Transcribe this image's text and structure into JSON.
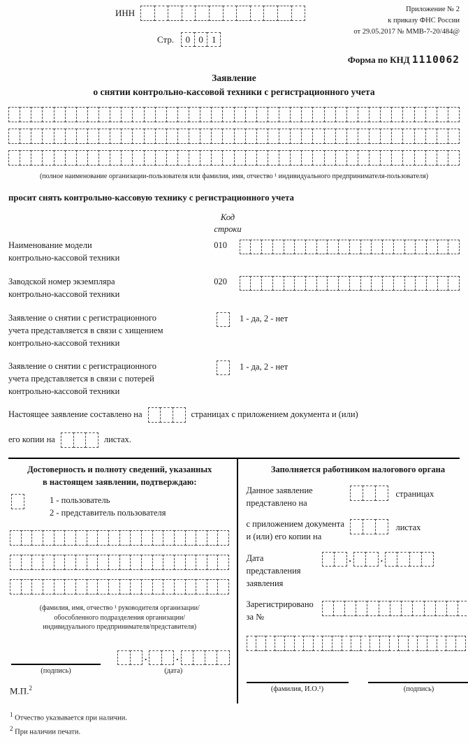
{
  "colors": {
    "line": "#000000",
    "cell_border": "#4a4a4a",
    "text": "#1a1a1a",
    "background": "#fefefe"
  },
  "header": {
    "inn_label": "ИНН",
    "inn_cells": 12,
    "page_label": "Стр.",
    "page_cells": 3,
    "page_value": [
      "0",
      "0",
      "1"
    ],
    "appendix_line1": "Приложение № 2",
    "appendix_line2": "к приказу ФНС России",
    "appendix_line3": "от 29.05.2017 № ММВ-7-20/484@",
    "form_code_label": "Форма по КНД",
    "form_code_value": "1110062"
  },
  "title": {
    "line1": "Заявление",
    "line2": "о снятии контрольно-кассовой техники с регистрационного учета"
  },
  "applicant": {
    "rows": 3,
    "cols": 40,
    "caption": "(полное наименование организации-пользователя или фамилия, имя, отчество ¹ индивидуального предпринимателя-пользователя)"
  },
  "request_line": "просит снять контрольно-кассовую технику с регистрационного учета",
  "code_header": {
    "line1": "Код",
    "line2": "строки"
  },
  "fields": [
    {
      "label1": "Наименование модели",
      "label2": "контрольно-кассовой техники",
      "code": "010",
      "cells": 20
    },
    {
      "label1": "Заводской номер экземпляра",
      "label2": "контрольно-кассовой техники",
      "code": "020",
      "cells": 20
    }
  ],
  "checkbox_cells": 1,
  "checkboxes": [
    {
      "line1": "Заявление о снятии с регистрационного",
      "line2": "учета представляется в связи с хищением",
      "line3": "контрольно-кассовой техники",
      "options": "1 - да,  2 - нет"
    },
    {
      "line1": "Заявление о снятии с регистрационного",
      "line2": "учета представляется в связи с потерей",
      "line3": "контрольно-кассовой техники",
      "options": "1 - да,  2 - нет"
    }
  ],
  "pages_statement": {
    "text1": "Настоящее заявление составлено на",
    "cells1": 3,
    "text2": "страницах с приложением документа и (или)",
    "text3": "его копии на",
    "cells2": 3,
    "text4": "листах."
  },
  "left_panel": {
    "header_line1": "Достоверность и полноту сведений, указанных",
    "header_line2": "в настоящем заявлении, подтверждаю:",
    "option1": "1 - пользователь",
    "option2": "2 - представитель пользователя",
    "rows": 3,
    "cols": 20,
    "caption_line1": "(фамилия, имя, отчество ¹ руководителя организации/",
    "caption_line2": "обособленного подразделения организации/",
    "caption_line3": "индивидуального предпринимателя/представителя)",
    "signature_label": "(подпись)",
    "date_label": "(дата)",
    "date_groups": [
      2,
      2,
      4
    ],
    "date_separator": ".",
    "stamp": "М.П.",
    "stamp_sup": "2"
  },
  "right_panel": {
    "header": "Заполняется работником налогового органа",
    "row1_label1": "Данное заявление",
    "row1_label2": "представлено на",
    "row1_cells": 3,
    "row1_suffix": "страницах",
    "row2_label1": "с приложением документа",
    "row2_label2": "и (или) его копии на",
    "row2_cells": 3,
    "row2_suffix": "листах",
    "date_label1": "Дата",
    "date_label2": "представления",
    "date_label3": "заявления",
    "date_groups": [
      2,
      2,
      4
    ],
    "date_separator": ".",
    "reg_label1": "Зарегистрировано",
    "reg_label2": "за №",
    "reg_cells": 13,
    "name_cells": 23,
    "sign1_label": "(фамилия, И.О.¹)",
    "sign2_label": "(подпись)"
  },
  "footnotes": {
    "note1_sup": "1",
    "note1": "Отчество указывается при наличии.",
    "note2_sup": "2",
    "note2": "При наличии печати."
  }
}
